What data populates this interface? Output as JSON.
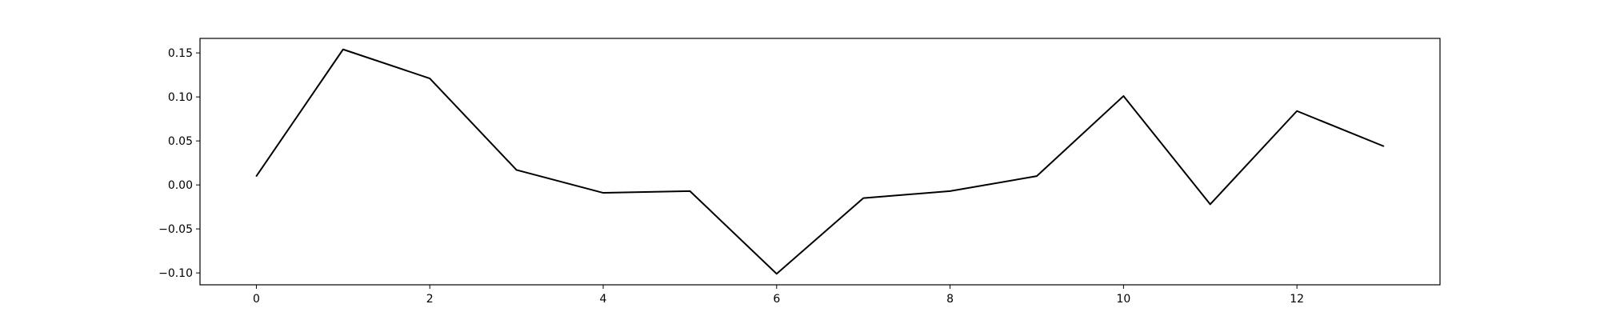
{
  "chart_data": {
    "type": "line",
    "title": "",
    "xlabel": "",
    "ylabel": "",
    "xlim": [
      -0.65,
      13.65
    ],
    "ylim": [
      -0.1135,
      0.1665
    ],
    "grid": false,
    "legend": "none",
    "x_ticks": [
      0,
      2,
      4,
      6,
      8,
      10,
      12
    ],
    "x_tick_labels": [
      "0",
      "2",
      "4",
      "6",
      "8",
      "10",
      "12"
    ],
    "y_ticks": [
      0.15,
      0.1,
      0.05,
      0.0,
      -0.05,
      -0.1
    ],
    "y_tick_labels": [
      "0.15",
      "0.10",
      "0.05",
      "0.00",
      "−0.05",
      "−0.10"
    ],
    "series": [
      {
        "color": "#000000",
        "x": [
          0,
          1,
          2,
          3,
          4,
          5,
          6,
          7,
          8,
          9,
          10,
          11,
          12,
          13
        ],
        "y": [
          0.01,
          0.154,
          0.121,
          0.017,
          -0.009,
          -0.007,
          -0.101,
          -0.015,
          -0.007,
          0.01,
          0.101,
          -0.022,
          0.084,
          0.044
        ]
      }
    ]
  }
}
